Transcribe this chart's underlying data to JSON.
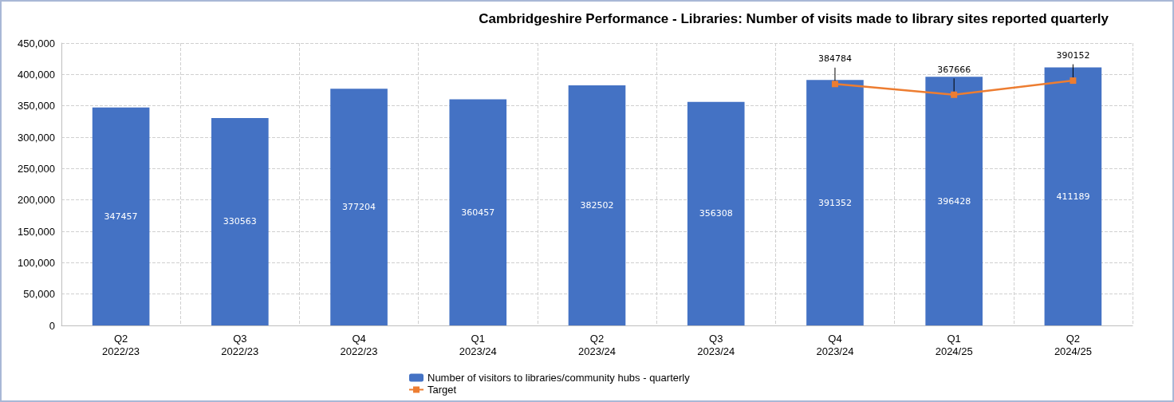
{
  "chart_data": {
    "type": "bar",
    "title": "Cambridgeshire Performance - Libraries: Number of visits made to library sites reported quarterly",
    "categories": [
      "Q2\n2022/23",
      "Q3\n2022/23",
      "Q4\n2022/23",
      "Q1\n2023/24",
      "Q2\n2023/24",
      "Q3\n2023/24",
      "Q4\n2023/24",
      "Q1\n2024/25",
      "Q2\n2024/25"
    ],
    "series": [
      {
        "name": "Number of visitors to libraries/community hubs - quarterly",
        "color": "#4472c4",
        "values": [
          347457,
          330563,
          377204,
          360457,
          382502,
          356308,
          391352,
          396428,
          411189
        ]
      },
      {
        "name": "Target",
        "type": "line",
        "color": "#ed7d31",
        "marker": "square",
        "values": [
          null,
          null,
          null,
          null,
          null,
          null,
          384784,
          367666,
          390152
        ]
      }
    ],
    "ylim": [
      0,
      450000
    ],
    "yticks": [
      0,
      {
        "value": 50000,
        "label": "50,000"
      },
      {
        "value": 100000,
        "label": "100,000"
      },
      {
        "value": 150000,
        "label": "150,000"
      },
      {
        "value": 200000,
        "label": "200,000"
      },
      {
        "value": 250000,
        "label": "250,000"
      },
      {
        "value": 300000,
        "label": "300,000"
      },
      {
        "value": 350000,
        "label": "350,000"
      },
      {
        "value": 400000,
        "label": "400,000"
      },
      {
        "value": 450000,
        "label": "450,000"
      }
    ],
    "grid": true,
    "legend": "bottom",
    "data_labels": true
  }
}
